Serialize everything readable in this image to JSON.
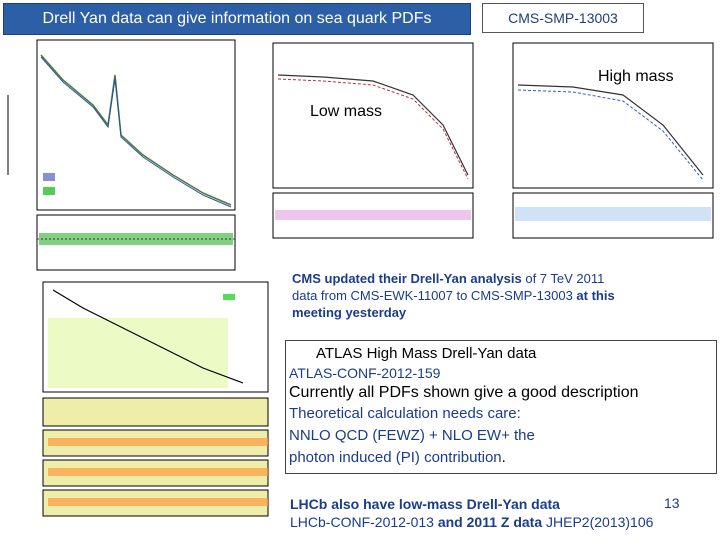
{
  "header": {
    "title": "Drell Yan data can give information on sea quark PDFs",
    "reference": "CMS-SMP-13003"
  },
  "cms_plot": {
    "label_high": "High mass",
    "label_low": "Low mass"
  },
  "cms_note": {
    "line1a": "CMS updated their Drell-Yan analysis",
    "line1b": " of 7 TeV 2011",
    "line2a": "data from CMS-EWK-11007 to CMS-SMP-13003",
    "line2b": " at this",
    "line3": "meeting yesterday"
  },
  "atlas_box": {
    "heading": "ATLAS High Mass Drell-Yan data",
    "conf": "ATLAS-CONF-2012-159",
    "line_pdfs": "Currently all PDFs shown give a good description",
    "line_theory": "Theoretical calculation needs care:",
    "line_nnlo": " NNLO QCD (FEWZ) + NLO EW+ the",
    "line_photon": "photon induced (PI) contribution",
    "line_photon_end": "."
  },
  "footer": {
    "lhcb_line1": "LHCb also have low-mass Drell-Yan data",
    "page_number": "13",
    "lhcb_line2a": "LHCb-CONF-2012-013",
    "lhcb_line2b": " and 2011 Z data",
    "lhcb_line2c": " JHEP2(2013)106"
  },
  "colors": {
    "title_bg": "#2d5fa6",
    "note_text": "#1a3c8c"
  }
}
